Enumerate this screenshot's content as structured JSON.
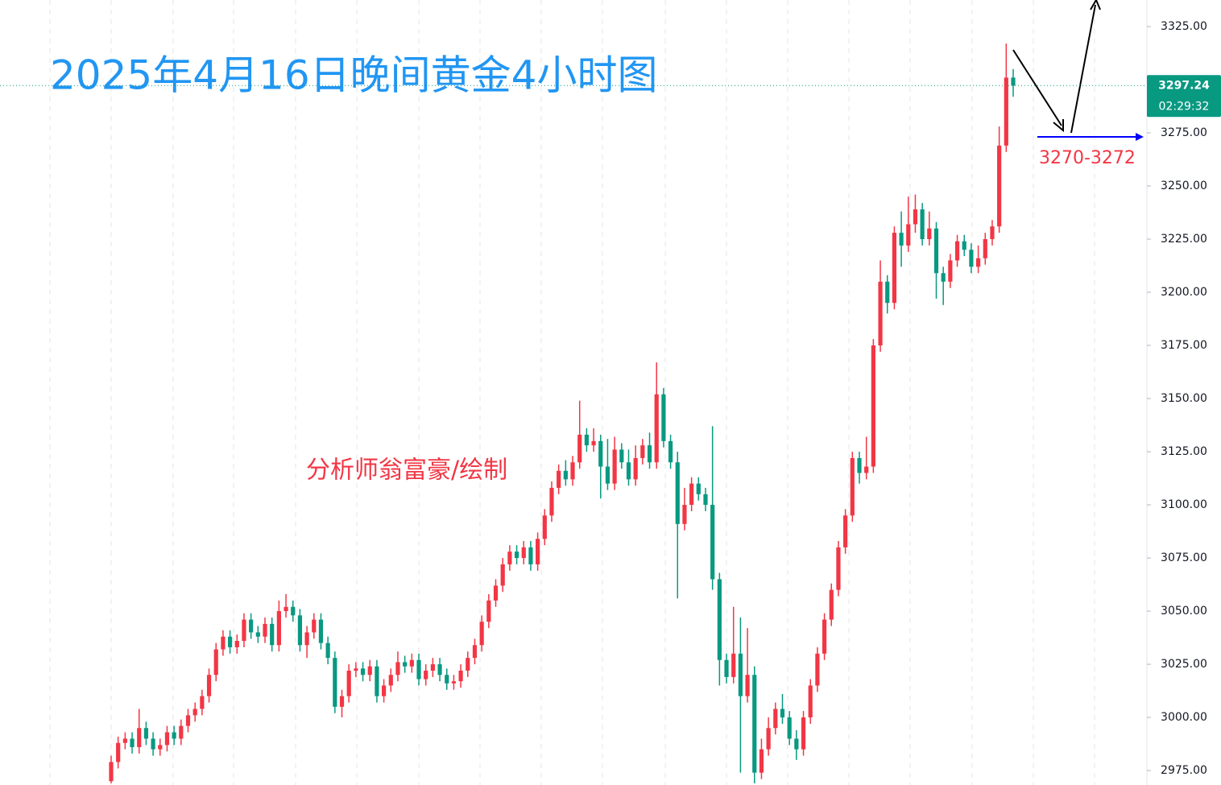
{
  "chart_data": {
    "type": "candlestick",
    "title": "2025年4月16日晚间黄金4小时图",
    "annotations": [
      "分析师翁富豪/绘制",
      "3270-3272"
    ],
    "last_price": {
      "value": 3297.24,
      "label": "3297.24"
    },
    "countdown": "02:29:32",
    "up_color": "#f23645",
    "down_color": "#089981",
    "ylim": [
      2968.2,
      3337.5
    ],
    "yticks": [
      {
        "value": 2975,
        "label": "2975.00"
      },
      {
        "value": 3000,
        "label": "3000.00"
      },
      {
        "value": 3025,
        "label": "3025.00"
      },
      {
        "value": 3050,
        "label": "3050.00"
      },
      {
        "value": 3075,
        "label": "3075.00"
      },
      {
        "value": 3100,
        "label": "3100.00"
      },
      {
        "value": 3125,
        "label": "3125.00"
      },
      {
        "value": 3150,
        "label": "3150.00"
      },
      {
        "value": 3175,
        "label": "3175.00"
      },
      {
        "value": 3200,
        "label": "3200.00"
      },
      {
        "value": 3225,
        "label": "3225.00"
      },
      {
        "value": 3250,
        "label": "3250.00"
      },
      {
        "value": 3275,
        "label": "3275.00"
      },
      {
        "value": 3325,
        "label": "3325.00"
      }
    ],
    "open": [
      2970,
      2979,
      2988,
      2990,
      2986,
      2995,
      2990,
      2985,
      2987,
      2993,
      2990,
      2996,
      3001,
      3004,
      3010,
      3020,
      3032,
      3038,
      3033,
      3036,
      3046,
      3040,
      3038,
      3044,
      3034,
      3050,
      3052,
      3048,
      3034,
      3040,
      3046,
      3035,
      3028,
      3005,
      3010,
      3022,
      3023,
      3020,
      3024,
      3010,
      3015,
      3020,
      3026,
      3024,
      3027,
      3018,
      3022,
      3025,
      3020,
      3016,
      3017,
      3022,
      3028,
      3034,
      3045,
      3055,
      3062,
      3072,
      3078,
      3075,
      3080,
      3072,
      3084,
      3095,
      3108,
      3116,
      3112,
      3120,
      3133,
      3128,
      3130,
      3118,
      3110,
      3126,
      3120,
      3112,
      3122,
      3128,
      3120,
      3152,
      3130,
      3120,
      3091,
      3100,
      3110,
      3105,
      3100,
      3065,
      3027,
      3019,
      3030,
      3010,
      3020,
      2974,
      2985,
      2995,
      3004,
      3000,
      2990,
      2985,
      3000,
      3015,
      3030,
      3046,
      3060,
      3080,
      3095,
      3122,
      3115,
      3118,
      3175,
      3205,
      3195,
      3228,
      3222,
      3232,
      3239,
      3225,
      3230,
      3209,
      3205,
      3215,
      3224,
      3220,
      3212,
      3216,
      3225,
      3231,
      3269,
      3301
    ],
    "high": [
      2982,
      2991,
      2993,
      2993,
      3004,
      2998,
      2993,
      2990,
      2996,
      2996,
      2999,
      3004,
      3007,
      3013,
      3023,
      3035,
      3041,
      3041,
      3039,
      3049,
      3049,
      3043,
      3047,
      3047,
      3055,
      3058,
      3055,
      3051,
      3043,
      3049,
      3049,
      3038,
      3031,
      3013,
      3025,
      3026,
      3026,
      3027,
      3027,
      3018,
      3023,
      3031,
      3029,
      3030,
      3030,
      3025,
      3028,
      3028,
      3023,
      3020,
      3025,
      3031,
      3037,
      3048,
      3058,
      3065,
      3075,
      3081,
      3081,
      3083,
      3083,
      3087,
      3098,
      3111,
      3119,
      3121,
      3123,
      3149,
      3136,
      3136,
      3133,
      3131,
      3132,
      3129,
      3126,
      3128,
      3131,
      3134,
      3167,
      3155,
      3133,
      3125,
      3108,
      3113,
      3113,
      3108,
      3137,
      3068,
      3030,
      3052,
      3047,
      3042,
      3024,
      2990,
      3000,
      3007,
      3011,
      3003,
      2994,
      3003,
      3018,
      3033,
      3049,
      3063,
      3083,
      3098,
      3125,
      3125,
      3132,
      3178,
      3215,
      3208,
      3231,
      3238,
      3245,
      3246,
      3242,
      3238,
      3233,
      3212,
      3218,
      3227,
      3227,
      3223,
      3222,
      3228,
      3234,
      3278,
      3317,
      3305
    ],
    "low": [
      2969,
      2976,
      2985,
      2983,
      2983,
      2987,
      2982,
      2982,
      2984,
      2987,
      2987,
      2993,
      2998,
      3001,
      3007,
      3017,
      3029,
      3030,
      3030,
      3033,
      3037,
      3035,
      3035,
      3031,
      3031,
      3047,
      3045,
      3031,
      3028,
      3037,
      3032,
      3025,
      3002,
      3000,
      3007,
      3019,
      3017,
      3017,
      3007,
      3007,
      3012,
      3017,
      3021,
      3021,
      3015,
      3015,
      3019,
      3017,
      3013,
      3013,
      3014,
      3019,
      3025,
      3031,
      3042,
      3052,
      3059,
      3069,
      3072,
      3072,
      3069,
      3069,
      3081,
      3092,
      3105,
      3109,
      3109,
      3117,
      3125,
      3125,
      3103,
      3107,
      3107,
      3117,
      3109,
      3109,
      3119,
      3117,
      3117,
      3127,
      3117,
      3056,
      3088,
      3097,
      3102,
      3097,
      3060,
      3015,
      3016,
      3016,
      2974,
      3007,
      2969,
      2971,
      2982,
      2992,
      2997,
      2987,
      2980,
      2982,
      2997,
      3012,
      3027,
      3043,
      3057,
      3077,
      3092,
      3110,
      3112,
      3115,
      3172,
      3190,
      3192,
      3212,
      3219,
      3228,
      3222,
      3222,
      3197,
      3194,
      3202,
      3212,
      3217,
      3209,
      3209,
      3213,
      3222,
      3228,
      3266,
      3292
    ],
    "close": [
      2979,
      2988,
      2990,
      2986,
      2995,
      2990,
      2985,
      2987,
      2993,
      2990,
      2996,
      3001,
      3004,
      3010,
      3020,
      3032,
      3038,
      3033,
      3036,
      3046,
      3040,
      3038,
      3044,
      3034,
      3050,
      3052,
      3048,
      3034,
      3040,
      3046,
      3035,
      3028,
      3005,
      3010,
      3022,
      3023,
      3020,
      3024,
      3010,
      3015,
      3020,
      3026,
      3024,
      3027,
      3018,
      3022,
      3025,
      3020,
      3016,
      3017,
      3022,
      3028,
      3034,
      3045,
      3055,
      3062,
      3072,
      3078,
      3075,
      3080,
      3072,
      3084,
      3095,
      3108,
      3116,
      3112,
      3120,
      3133,
      3128,
      3130,
      3118,
      3110,
      3126,
      3120,
      3112,
      3122,
      3128,
      3120,
      3152,
      3130,
      3120,
      3091,
      3100,
      3110,
      3105,
      3100,
      3065,
      3027,
      3019,
      3030,
      3010,
      3020,
      2974,
      2985,
      2995,
      3004,
      3000,
      2990,
      2985,
      3000,
      3015,
      3030,
      3046,
      3060,
      3080,
      3095,
      3122,
      3115,
      3118,
      3175,
      3205,
      3195,
      3228,
      3222,
      3232,
      3239,
      3225,
      3230,
      3209,
      3205,
      3215,
      3224,
      3220,
      3212,
      3216,
      3225,
      3231,
      3269,
      3301,
      3297.24
    ]
  }
}
